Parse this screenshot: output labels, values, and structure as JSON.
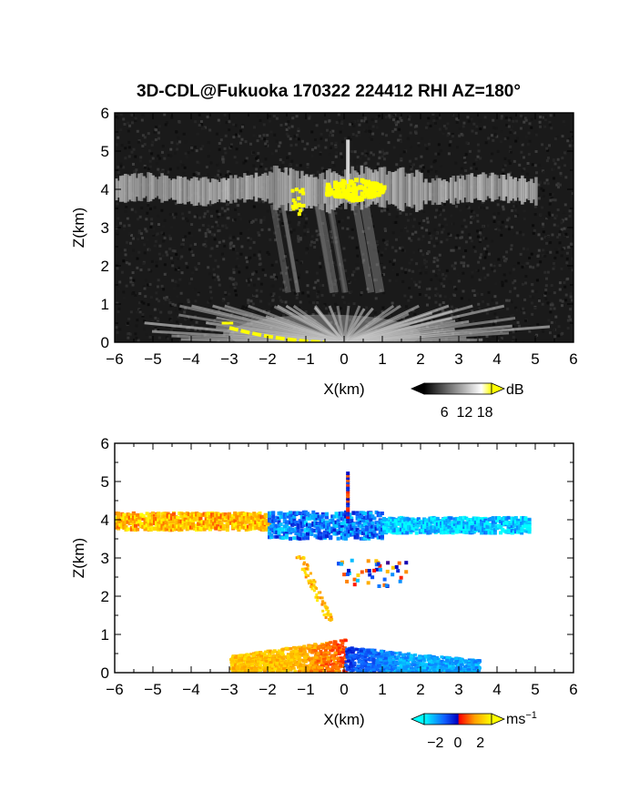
{
  "figure": {
    "title": "3D-CDL@Fukuoka 170322 224412 RHI AZ=180°"
  },
  "chart_data": [
    {
      "type": "heatmap",
      "panel": "reflectivity",
      "colormap": "gray-to-yellow",
      "xlabel": "X(km)",
      "ylabel": "Z(km)",
      "xlim": [
        -6,
        6
      ],
      "ylim": [
        0,
        6
      ],
      "xticks": [
        "-6",
        "-5",
        "-4",
        "-3",
        "-2",
        "-1",
        "0",
        "1",
        "2",
        "3",
        "4",
        "5",
        "6"
      ],
      "yticks": [
        "0",
        "1",
        "2",
        "3",
        "4",
        "5",
        "6"
      ],
      "colorbar": {
        "unit": "dB",
        "ticks": [
          "6",
          "12",
          "18"
        ],
        "range": [
          0,
          20
        ]
      },
      "features": [
        {
          "name": "cloud layer",
          "x_range": [
            -6,
            5
          ],
          "z_center": 4.0,
          "thickness_km": 0.6,
          "value_db": 11
        },
        {
          "name": "saturated core",
          "x_range": [
            -0.5,
            1.0
          ],
          "z_range": [
            3.75,
            4.35
          ],
          "value_db": 20
        },
        {
          "name": "saturated patch",
          "x_range": [
            -1.4,
            -1.1
          ],
          "z_range": [
            3.4,
            4.05
          ],
          "value_db": 20
        },
        {
          "name": "vertical spike",
          "x": 0.1,
          "z_range": [
            4.0,
            5.3
          ],
          "value_db": 14
        },
        {
          "name": "fall streaks",
          "x_range": [
            -1.5,
            1.0
          ],
          "z_range": [
            1.3,
            3.6
          ],
          "value_db": 7
        },
        {
          "name": "near-ground fan",
          "x_range": [
            -3.0,
            2.0
          ],
          "z_range": [
            0,
            0.95
          ],
          "value_db": 12
        },
        {
          "name": "ground clutter",
          "x_range": [
            -3.3,
            -0.5
          ],
          "z_range": [
            0,
            0.5
          ],
          "value_db": 20
        }
      ]
    },
    {
      "type": "heatmap",
      "panel": "doppler velocity",
      "colormap": "cyan-blue-red-yellow",
      "xlabel": "X(km)",
      "ylabel": "Z(km)",
      "xlim": [
        -6,
        6
      ],
      "ylim": [
        0,
        6
      ],
      "xticks": [
        "-6",
        "-5",
        "-4",
        "-3",
        "-2",
        "-1",
        "0",
        "1",
        "2",
        "3",
        "4",
        "5",
        "6"
      ],
      "yticks": [
        "0",
        "1",
        "2",
        "3",
        "4",
        "5",
        "6"
      ],
      "colorbar": {
        "unit": "ms",
        "unit_exponent": "−1",
        "ticks": [
          "−2",
          "0",
          "2"
        ],
        "range": [
          -3,
          3
        ]
      },
      "features": [
        {
          "name": "cloud layer west",
          "x_range": [
            -6,
            -2
          ],
          "z_center": 4.0,
          "velocity_ms": 2.0
        },
        {
          "name": "cloud layer center",
          "x_range": [
            -2,
            1
          ],
          "z_center": 3.9,
          "velocity_ms": -1.5
        },
        {
          "name": "cloud layer east",
          "x_range": [
            1,
            4.8
          ],
          "z_center": 3.9,
          "velocity_ms": -2.5
        },
        {
          "name": "fall streak",
          "x_range": [
            -1.2,
            -0.4
          ],
          "z_range": [
            1.4,
            3.1
          ],
          "velocity_ms": 2.0
        },
        {
          "name": "low layer west",
          "x_range": [
            -3,
            0
          ],
          "z_range": [
            0.05,
            0.9
          ],
          "velocity_ms": 2.0
        },
        {
          "name": "low layer east",
          "x_range": [
            0,
            3.5
          ],
          "z_range": [
            0.05,
            0.7
          ],
          "velocity_ms": -2.0
        }
      ]
    }
  ],
  "colors": {
    "cb1_stops": [
      "#000000",
      "#ffffff",
      "#ffff00"
    ],
    "cb2_stops": [
      "#00ffff",
      "#1060ff",
      "#0000c0",
      "#ff0000",
      "#ffa000",
      "#ffff00"
    ]
  }
}
